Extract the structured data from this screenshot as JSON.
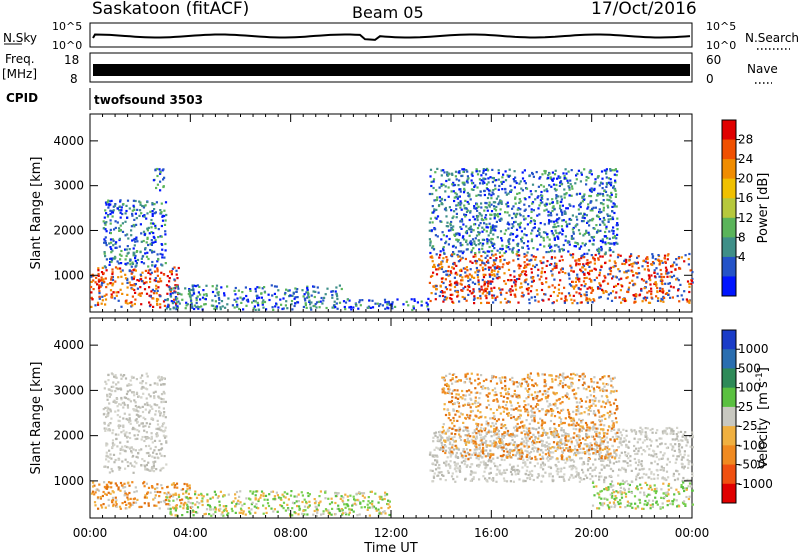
{
  "header": {
    "title": "Saskatoon (fitACF)",
    "beam": "Beam 05",
    "date": "17/Oct/2016"
  },
  "noise_panel": {
    "left_label": "N.Sky",
    "right_label": "N.Search",
    "left_ticks": [
      "10^5",
      "10^0"
    ],
    "right_ticks": [
      "10^5",
      "10^0"
    ]
  },
  "freq_panel": {
    "left_label_1": "Freq.",
    "left_label_2": "[MHz]",
    "left_ticks": [
      "18",
      "8"
    ],
    "right_label": "Nave",
    "right_ticks": [
      "60",
      "0"
    ]
  },
  "cpid_panel": {
    "label": "CPID",
    "value": "twofsound 3503"
  },
  "time_axis": {
    "label": "Time UT",
    "ticks": [
      "00:00",
      "04:00",
      "08:00",
      "12:00",
      "16:00",
      "20:00",
      "00:00"
    ]
  },
  "chart_data": [
    {
      "type": "heatmap",
      "name": "power",
      "ylabel": "Slant Range [km]",
      "ylim": [
        180,
        4600
      ],
      "yticks": [
        1000,
        2000,
        3000,
        4000
      ],
      "xlim_hours": [
        0,
        24
      ],
      "colorbar": {
        "label": "Power [dB]",
        "labels": [
          "28",
          "24",
          "20",
          "16",
          "12",
          "8",
          "4"
        ],
        "range": [
          0,
          30
        ],
        "colors": [
          "#0015ff",
          "#2453c8",
          "#3f8f88",
          "#5ab45a",
          "#b6c83c",
          "#f0c000",
          "#f08c00",
          "#f05000",
          "#e00000"
        ]
      },
      "regions": [
        {
          "t_start": 0.0,
          "t_end": 3.5,
          "r_low": 300,
          "r_high": 1200,
          "level": "high"
        },
        {
          "t_start": 0.5,
          "t_end": 3.0,
          "r_low": 1200,
          "r_high": 2700,
          "level": "medium"
        },
        {
          "t_start": 2.5,
          "t_end": 3.0,
          "r_low": 2900,
          "r_high": 3400,
          "level": "low"
        },
        {
          "t_start": 3.0,
          "t_end": 10.0,
          "r_low": 250,
          "r_high": 800,
          "level": "medium"
        },
        {
          "t_start": 10.0,
          "t_end": 13.5,
          "r_low": 250,
          "r_high": 500,
          "level": "low"
        },
        {
          "t_start": 13.5,
          "t_end": 24.0,
          "r_low": 400,
          "r_high": 1500,
          "level": "high"
        },
        {
          "t_start": 13.5,
          "t_end": 21.0,
          "r_low": 1500,
          "r_high": 3400,
          "level": "medium"
        }
      ]
    },
    {
      "type": "heatmap",
      "name": "velocity",
      "ylabel": "Slant Range [km]",
      "ylim": [
        180,
        4600
      ],
      "yticks": [
        1000,
        2000,
        3000,
        4000
      ],
      "xlim_hours": [
        0,
        24
      ],
      "colorbar": {
        "label_main": "Velocity",
        "label_units": "[m s",
        "label_exp": "-1",
        "label_close": "]",
        "labels": [
          "1000",
          "500",
          "100",
          "25",
          "-25",
          "-100",
          "-500",
          "-1000"
        ],
        "colors": [
          "#1a3cc8",
          "#2a6eb0",
          "#2e8a58",
          "#5ac040",
          "#c8c8c0",
          "#f0b040",
          "#f08a20",
          "#f05010",
          "#e00000"
        ]
      },
      "regions": [
        {
          "t_start": 0.0,
          "t_end": 4.0,
          "r_low": 400,
          "r_high": 1000,
          "level": "negative"
        },
        {
          "t_start": 0.5,
          "t_end": 3.0,
          "r_low": 1200,
          "r_high": 3400,
          "level": "ground"
        },
        {
          "t_start": 3.0,
          "t_end": 12.0,
          "r_low": 250,
          "r_high": 800,
          "level": "positive"
        },
        {
          "t_start": 13.5,
          "t_end": 24.0,
          "r_low": 1000,
          "r_high": 2200,
          "level": "ground"
        },
        {
          "t_start": 14.0,
          "t_end": 21.0,
          "r_low": 1500,
          "r_high": 3400,
          "level": "negative"
        },
        {
          "t_start": 20.0,
          "t_end": 24.0,
          "r_low": 400,
          "r_high": 1000,
          "level": "positive"
        }
      ]
    }
  ]
}
